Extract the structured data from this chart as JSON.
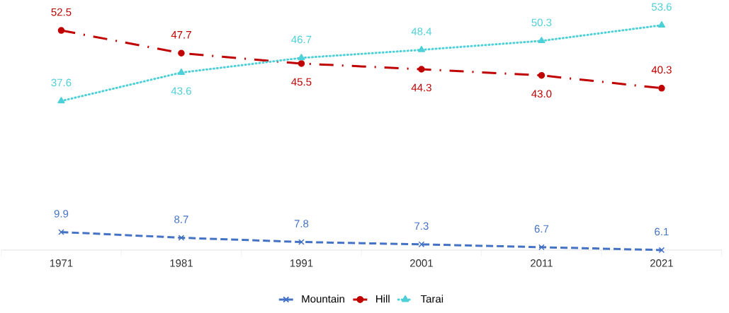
{
  "chart_data": {
    "type": "line",
    "categories": [
      "1971",
      "1981",
      "1991",
      "2001",
      "2011",
      "2021"
    ],
    "series": [
      {
        "name": "Mountain",
        "color": "#4472c4",
        "marker": "cross",
        "line_style": "dashed",
        "values": [
          9.9,
          8.7,
          7.8,
          7.3,
          6.7,
          6.1
        ],
        "value_labels": [
          "9.9",
          "8.7",
          "7.8",
          "7.3",
          "6.7",
          "6.1"
        ]
      },
      {
        "name": "Hill",
        "color": "#c00000",
        "marker": "circle",
        "line_style": "dashdot",
        "values": [
          52.5,
          47.7,
          45.5,
          44.3,
          43.0,
          40.3
        ],
        "value_labels": [
          "52.5",
          "47.7",
          "45.5",
          "44.3",
          "43.0",
          "40.3"
        ]
      },
      {
        "name": "Tarai",
        "color": "#4dd0d8",
        "marker": "triangle",
        "line_style": "dotted",
        "values": [
          37.6,
          43.6,
          46.7,
          48.4,
          50.3,
          53.6
        ],
        "value_labels": [
          "37.6",
          "43.6",
          "46.7",
          "48.4",
          "50.3",
          "53.6"
        ]
      }
    ],
    "tick_labels": "x",
    "grid": false,
    "legend": "bottom"
  }
}
